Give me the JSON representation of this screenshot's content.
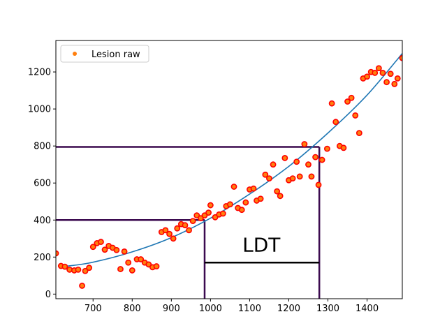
{
  "chart_data": {
    "type": "scatter",
    "xlim": [
      605,
      1490
    ],
    "ylim": [
      -25,
      1370
    ],
    "xticks": [
      700,
      800,
      900,
      1000,
      1100,
      1200,
      1300,
      1400
    ],
    "yticks": [
      0,
      200,
      400,
      600,
      800,
      1000,
      1200
    ],
    "legend": {
      "label": "Lesion raw",
      "placement": "top-left",
      "marker_color": "#ff7f0e"
    },
    "marker_face": "#ff7f0e",
    "marker_edge": "#ff0000",
    "fit_color": "#1f77b4",
    "guide_color": "#3b0a4f",
    "annotation": {
      "text": "LDT",
      "x": 1130,
      "y": 230
    },
    "fit_curve": {
      "x": [
        630,
        700,
        800,
        900,
        1000,
        1100,
        1200,
        1300,
        1400,
        1490
      ],
      "y": [
        150,
        172,
        228,
        305,
        410,
        540,
        690,
        870,
        1075,
        1300
      ]
    },
    "guides": {
      "low": {
        "y": 400,
        "x": 985
      },
      "high": {
        "y": 795,
        "x": 1278
      },
      "ldt_bar": {
        "y": 170,
        "x1": 985,
        "x2": 1278
      }
    },
    "points": [
      [
        605,
        220
      ],
      [
        618,
        152
      ],
      [
        628,
        148
      ],
      [
        640,
        132
      ],
      [
        652,
        128
      ],
      [
        662,
        132
      ],
      [
        672,
        45
      ],
      [
        680,
        125
      ],
      [
        690,
        142
      ],
      [
        700,
        255
      ],
      [
        710,
        275
      ],
      [
        720,
        282
      ],
      [
        730,
        240
      ],
      [
        740,
        260
      ],
      [
        750,
        250
      ],
      [
        760,
        238
      ],
      [
        770,
        135
      ],
      [
        780,
        230
      ],
      [
        790,
        170
      ],
      [
        800,
        128
      ],
      [
        812,
        188
      ],
      [
        822,
        188
      ],
      [
        832,
        170
      ],
      [
        842,
        160
      ],
      [
        852,
        145
      ],
      [
        862,
        150
      ],
      [
        875,
        335
      ],
      [
        885,
        345
      ],
      [
        895,
        325
      ],
      [
        905,
        300
      ],
      [
        915,
        355
      ],
      [
        925,
        378
      ],
      [
        935,
        372
      ],
      [
        945,
        345
      ],
      [
        955,
        395
      ],
      [
        965,
        425
      ],
      [
        975,
        410
      ],
      [
        985,
        425
      ],
      [
        995,
        440
      ],
      [
        1000,
        480
      ],
      [
        1012,
        415
      ],
      [
        1022,
        430
      ],
      [
        1032,
        435
      ],
      [
        1040,
        475
      ],
      [
        1050,
        485
      ],
      [
        1060,
        580
      ],
      [
        1070,
        465
      ],
      [
        1080,
        455
      ],
      [
        1090,
        495
      ],
      [
        1100,
        565
      ],
      [
        1110,
        570
      ],
      [
        1118,
        505
      ],
      [
        1128,
        515
      ],
      [
        1140,
        645
      ],
      [
        1150,
        625
      ],
      [
        1160,
        700
      ],
      [
        1170,
        555
      ],
      [
        1178,
        530
      ],
      [
        1190,
        735
      ],
      [
        1200,
        615
      ],
      [
        1210,
        625
      ],
      [
        1220,
        715
      ],
      [
        1228,
        635
      ],
      [
        1240,
        810
      ],
      [
        1250,
        700
      ],
      [
        1258,
        635
      ],
      [
        1268,
        740
      ],
      [
        1276,
        590
      ],
      [
        1285,
        725
      ],
      [
        1298,
        785
      ],
      [
        1310,
        1030
      ],
      [
        1320,
        930
      ],
      [
        1330,
        800
      ],
      [
        1340,
        790
      ],
      [
        1350,
        1040
      ],
      [
        1360,
        1060
      ],
      [
        1370,
        965
      ],
      [
        1380,
        870
      ],
      [
        1390,
        1165
      ],
      [
        1400,
        1175
      ],
      [
        1410,
        1200
      ],
      [
        1420,
        1195
      ],
      [
        1430,
        1220
      ],
      [
        1440,
        1195
      ],
      [
        1450,
        1145
      ],
      [
        1460,
        1190
      ],
      [
        1470,
        1135
      ],
      [
        1478,
        1165
      ],
      [
        1490,
        1275
      ]
    ]
  }
}
